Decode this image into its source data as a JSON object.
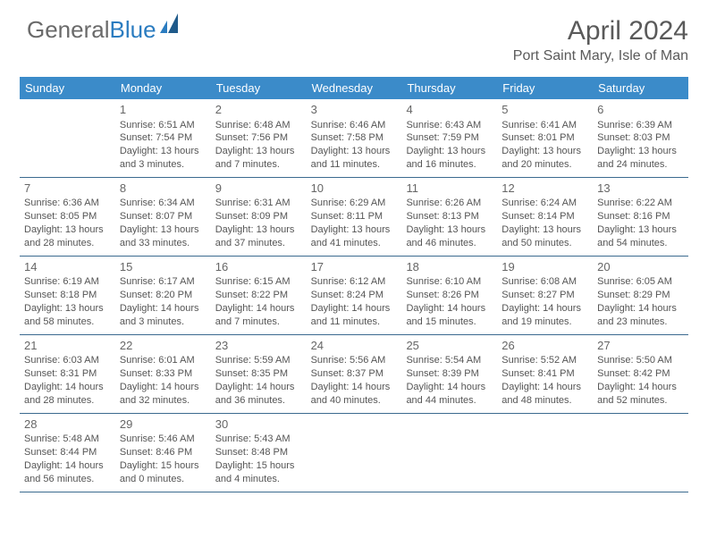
{
  "logo": {
    "text1": "General",
    "text2": "Blue"
  },
  "title": "April 2024",
  "location": "Port Saint Mary, Isle of Man",
  "colors": {
    "header_bg": "#3b8bc9",
    "header_text": "#ffffff",
    "row_border": "#3b6a8f",
    "body_text": "#555555",
    "title_text": "#5a5a5a",
    "logo_gray": "#6a6a6a",
    "logo_blue": "#2b7cc0"
  },
  "weekdays": [
    "Sunday",
    "Monday",
    "Tuesday",
    "Wednesday",
    "Thursday",
    "Friday",
    "Saturday"
  ],
  "weeks": [
    [
      {
        "day": "",
        "sunrise": "",
        "sunset": "",
        "daylight1": "",
        "daylight2": ""
      },
      {
        "day": "1",
        "sunrise": "Sunrise: 6:51 AM",
        "sunset": "Sunset: 7:54 PM",
        "daylight1": "Daylight: 13 hours",
        "daylight2": "and 3 minutes."
      },
      {
        "day": "2",
        "sunrise": "Sunrise: 6:48 AM",
        "sunset": "Sunset: 7:56 PM",
        "daylight1": "Daylight: 13 hours",
        "daylight2": "and 7 minutes."
      },
      {
        "day": "3",
        "sunrise": "Sunrise: 6:46 AM",
        "sunset": "Sunset: 7:58 PM",
        "daylight1": "Daylight: 13 hours",
        "daylight2": "and 11 minutes."
      },
      {
        "day": "4",
        "sunrise": "Sunrise: 6:43 AM",
        "sunset": "Sunset: 7:59 PM",
        "daylight1": "Daylight: 13 hours",
        "daylight2": "and 16 minutes."
      },
      {
        "day": "5",
        "sunrise": "Sunrise: 6:41 AM",
        "sunset": "Sunset: 8:01 PM",
        "daylight1": "Daylight: 13 hours",
        "daylight2": "and 20 minutes."
      },
      {
        "day": "6",
        "sunrise": "Sunrise: 6:39 AM",
        "sunset": "Sunset: 8:03 PM",
        "daylight1": "Daylight: 13 hours",
        "daylight2": "and 24 minutes."
      }
    ],
    [
      {
        "day": "7",
        "sunrise": "Sunrise: 6:36 AM",
        "sunset": "Sunset: 8:05 PM",
        "daylight1": "Daylight: 13 hours",
        "daylight2": "and 28 minutes."
      },
      {
        "day": "8",
        "sunrise": "Sunrise: 6:34 AM",
        "sunset": "Sunset: 8:07 PM",
        "daylight1": "Daylight: 13 hours",
        "daylight2": "and 33 minutes."
      },
      {
        "day": "9",
        "sunrise": "Sunrise: 6:31 AM",
        "sunset": "Sunset: 8:09 PM",
        "daylight1": "Daylight: 13 hours",
        "daylight2": "and 37 minutes."
      },
      {
        "day": "10",
        "sunrise": "Sunrise: 6:29 AM",
        "sunset": "Sunset: 8:11 PM",
        "daylight1": "Daylight: 13 hours",
        "daylight2": "and 41 minutes."
      },
      {
        "day": "11",
        "sunrise": "Sunrise: 6:26 AM",
        "sunset": "Sunset: 8:13 PM",
        "daylight1": "Daylight: 13 hours",
        "daylight2": "and 46 minutes."
      },
      {
        "day": "12",
        "sunrise": "Sunrise: 6:24 AM",
        "sunset": "Sunset: 8:14 PM",
        "daylight1": "Daylight: 13 hours",
        "daylight2": "and 50 minutes."
      },
      {
        "day": "13",
        "sunrise": "Sunrise: 6:22 AM",
        "sunset": "Sunset: 8:16 PM",
        "daylight1": "Daylight: 13 hours",
        "daylight2": "and 54 minutes."
      }
    ],
    [
      {
        "day": "14",
        "sunrise": "Sunrise: 6:19 AM",
        "sunset": "Sunset: 8:18 PM",
        "daylight1": "Daylight: 13 hours",
        "daylight2": "and 58 minutes."
      },
      {
        "day": "15",
        "sunrise": "Sunrise: 6:17 AM",
        "sunset": "Sunset: 8:20 PM",
        "daylight1": "Daylight: 14 hours",
        "daylight2": "and 3 minutes."
      },
      {
        "day": "16",
        "sunrise": "Sunrise: 6:15 AM",
        "sunset": "Sunset: 8:22 PM",
        "daylight1": "Daylight: 14 hours",
        "daylight2": "and 7 minutes."
      },
      {
        "day": "17",
        "sunrise": "Sunrise: 6:12 AM",
        "sunset": "Sunset: 8:24 PM",
        "daylight1": "Daylight: 14 hours",
        "daylight2": "and 11 minutes."
      },
      {
        "day": "18",
        "sunrise": "Sunrise: 6:10 AM",
        "sunset": "Sunset: 8:26 PM",
        "daylight1": "Daylight: 14 hours",
        "daylight2": "and 15 minutes."
      },
      {
        "day": "19",
        "sunrise": "Sunrise: 6:08 AM",
        "sunset": "Sunset: 8:27 PM",
        "daylight1": "Daylight: 14 hours",
        "daylight2": "and 19 minutes."
      },
      {
        "day": "20",
        "sunrise": "Sunrise: 6:05 AM",
        "sunset": "Sunset: 8:29 PM",
        "daylight1": "Daylight: 14 hours",
        "daylight2": "and 23 minutes."
      }
    ],
    [
      {
        "day": "21",
        "sunrise": "Sunrise: 6:03 AM",
        "sunset": "Sunset: 8:31 PM",
        "daylight1": "Daylight: 14 hours",
        "daylight2": "and 28 minutes."
      },
      {
        "day": "22",
        "sunrise": "Sunrise: 6:01 AM",
        "sunset": "Sunset: 8:33 PM",
        "daylight1": "Daylight: 14 hours",
        "daylight2": "and 32 minutes."
      },
      {
        "day": "23",
        "sunrise": "Sunrise: 5:59 AM",
        "sunset": "Sunset: 8:35 PM",
        "daylight1": "Daylight: 14 hours",
        "daylight2": "and 36 minutes."
      },
      {
        "day": "24",
        "sunrise": "Sunrise: 5:56 AM",
        "sunset": "Sunset: 8:37 PM",
        "daylight1": "Daylight: 14 hours",
        "daylight2": "and 40 minutes."
      },
      {
        "day": "25",
        "sunrise": "Sunrise: 5:54 AM",
        "sunset": "Sunset: 8:39 PM",
        "daylight1": "Daylight: 14 hours",
        "daylight2": "and 44 minutes."
      },
      {
        "day": "26",
        "sunrise": "Sunrise: 5:52 AM",
        "sunset": "Sunset: 8:41 PM",
        "daylight1": "Daylight: 14 hours",
        "daylight2": "and 48 minutes."
      },
      {
        "day": "27",
        "sunrise": "Sunrise: 5:50 AM",
        "sunset": "Sunset: 8:42 PM",
        "daylight1": "Daylight: 14 hours",
        "daylight2": "and 52 minutes."
      }
    ],
    [
      {
        "day": "28",
        "sunrise": "Sunrise: 5:48 AM",
        "sunset": "Sunset: 8:44 PM",
        "daylight1": "Daylight: 14 hours",
        "daylight2": "and 56 minutes."
      },
      {
        "day": "29",
        "sunrise": "Sunrise: 5:46 AM",
        "sunset": "Sunset: 8:46 PM",
        "daylight1": "Daylight: 15 hours",
        "daylight2": "and 0 minutes."
      },
      {
        "day": "30",
        "sunrise": "Sunrise: 5:43 AM",
        "sunset": "Sunset: 8:48 PM",
        "daylight1": "Daylight: 15 hours",
        "daylight2": "and 4 minutes."
      },
      {
        "day": "",
        "sunrise": "",
        "sunset": "",
        "daylight1": "",
        "daylight2": ""
      },
      {
        "day": "",
        "sunrise": "",
        "sunset": "",
        "daylight1": "",
        "daylight2": ""
      },
      {
        "day": "",
        "sunrise": "",
        "sunset": "",
        "daylight1": "",
        "daylight2": ""
      },
      {
        "day": "",
        "sunrise": "",
        "sunset": "",
        "daylight1": "",
        "daylight2": ""
      }
    ]
  ]
}
